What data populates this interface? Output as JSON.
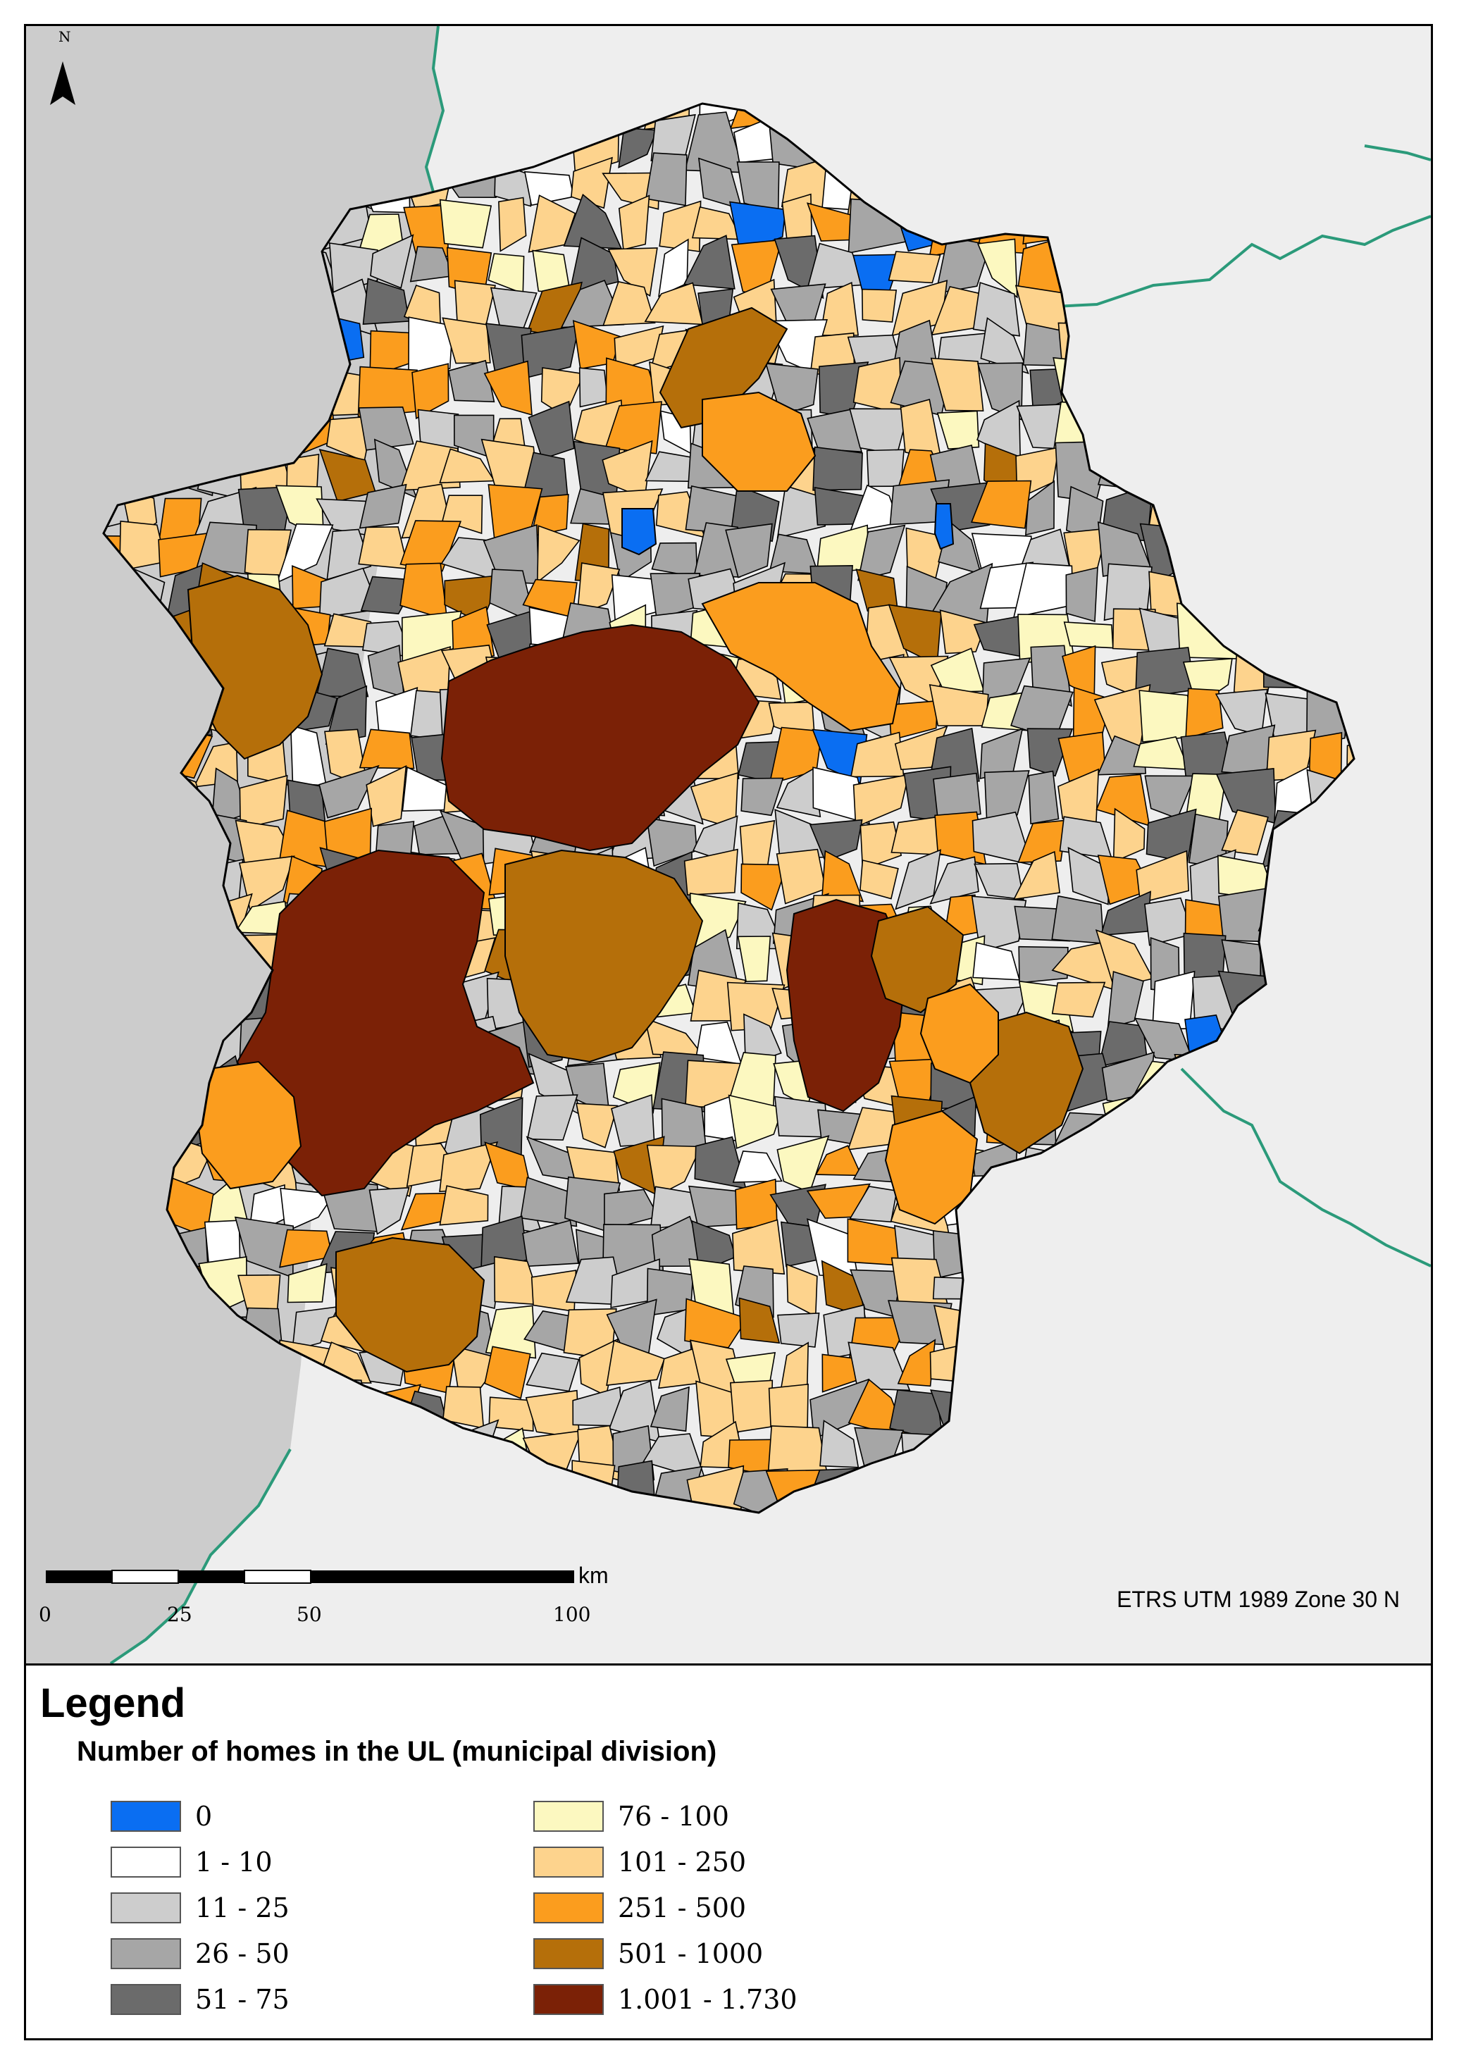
{
  "north_arrow": {
    "label": "N"
  },
  "scale_bar": {
    "unit": "km",
    "ticks": [
      "0",
      "25",
      "50",
      "100"
    ]
  },
  "projection_label": "ETRS UTM 1989 Zone 30 N",
  "legend": {
    "title": "Legend",
    "subtitle": "Number of homes in the UL (municipal division)",
    "classes": [
      {
        "label": "0",
        "color": "#0a6ef2"
      },
      {
        "label": "1 - 10",
        "color": "#ffffff"
      },
      {
        "label": "11 - 25",
        "color": "#cdcdcd"
      },
      {
        "label": "26 - 50",
        "color": "#a6a6a6"
      },
      {
        "label": "51 - 75",
        "color": "#6b6b6b"
      },
      {
        "label": "76 - 100",
        "color": "#fcf8c0"
      },
      {
        "label": "101 - 250",
        "color": "#fdd38d"
      },
      {
        "label": "251 - 500",
        "color": "#fb9d1e"
      },
      {
        "label": "501 - 1000",
        "color": "#b56f0a"
      },
      {
        "label": "1.001 - 1.730",
        "color": "#7b2106"
      }
    ]
  },
  "colors": {
    "background_land": "#eeeeee",
    "neighbor_country": "#cccccc",
    "boundary_line": "#2b9a7a"
  }
}
